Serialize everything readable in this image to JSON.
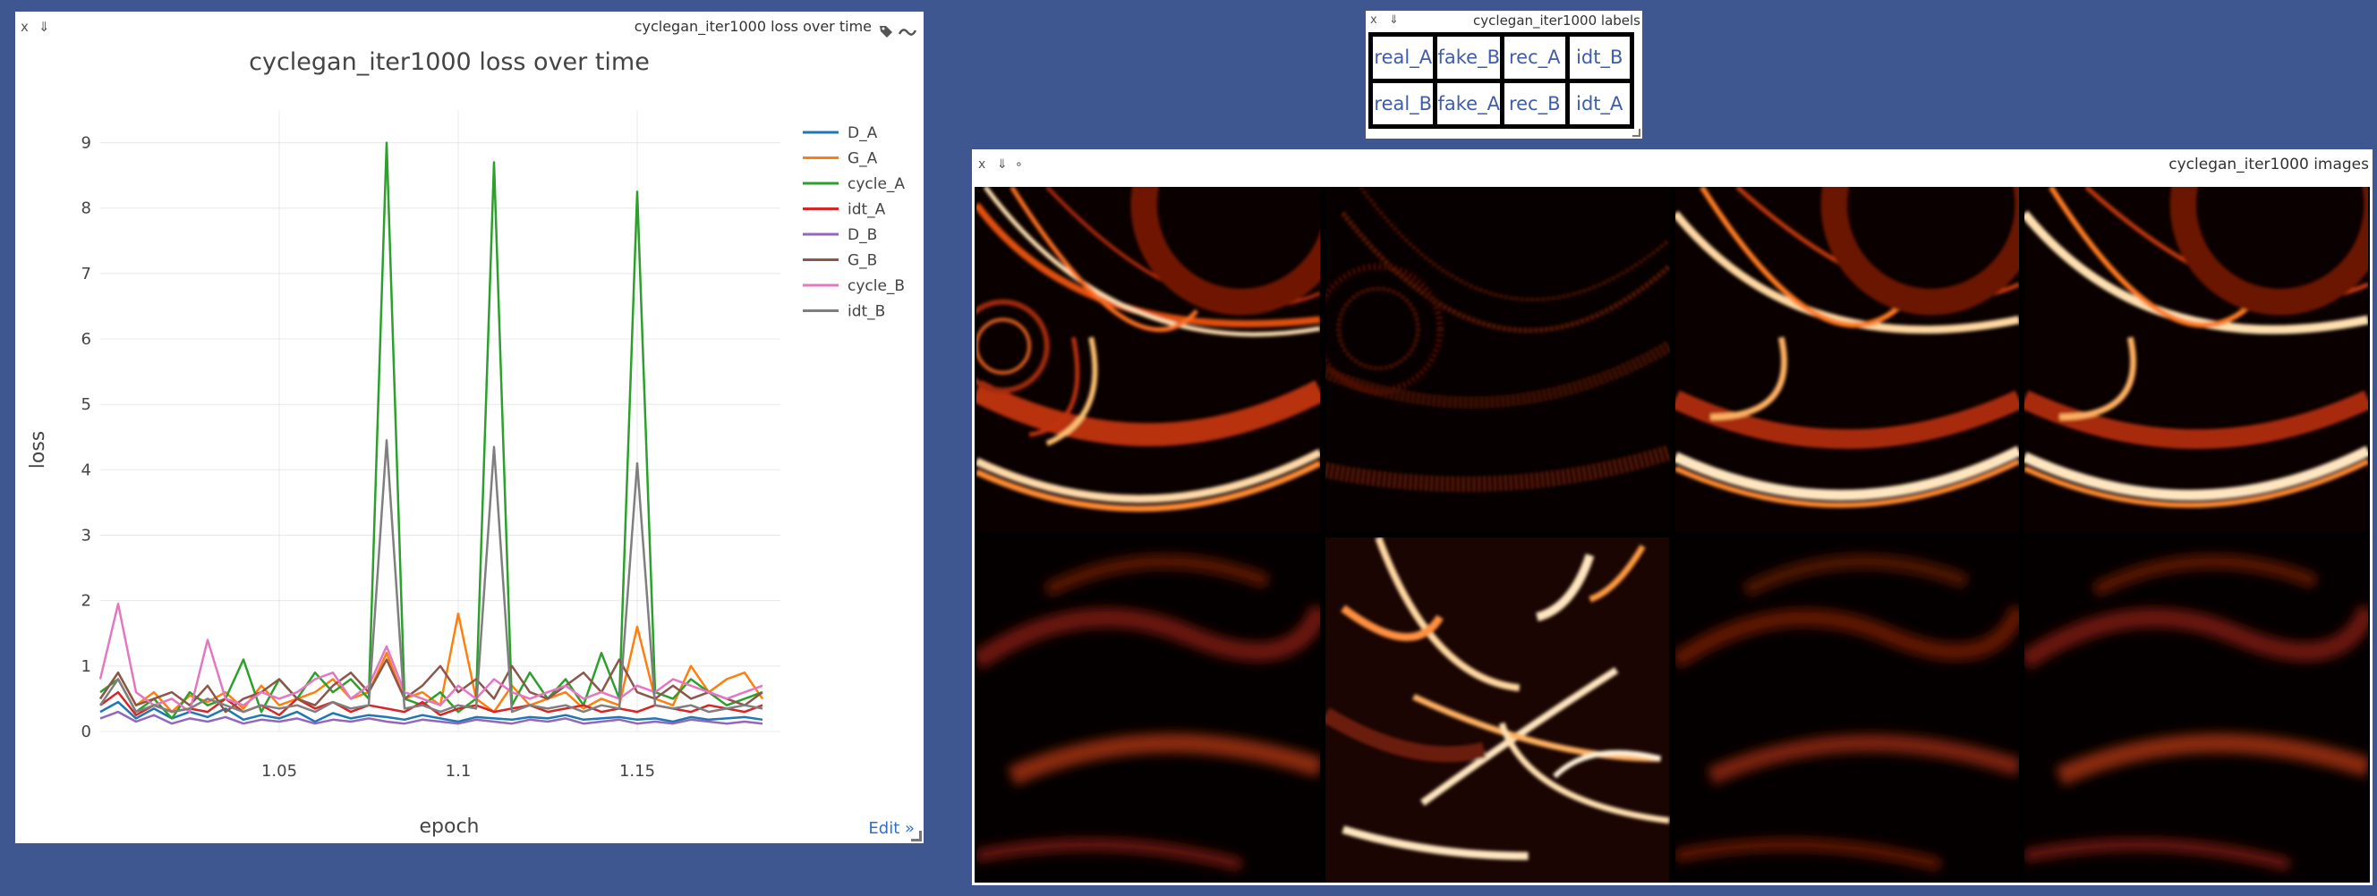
{
  "chart_window": {
    "close": "x",
    "download": "⇓",
    "title": "cyclegan_iter1000 loss over time",
    "tag_icon": "tag-icon",
    "smooth_icon": "wave-icon",
    "edit_link": "Edit »"
  },
  "labels_window": {
    "close": "x",
    "download": "⇓",
    "title": "cyclegan_iter1000 labels",
    "cells": [
      "real_A",
      "fake_B",
      "rec_A",
      "idt_B",
      "real_B",
      "fake_A",
      "rec_B",
      "idt_A"
    ]
  },
  "images_window": {
    "close": "x",
    "download": "⇓",
    "extra": "∘",
    "title": "cyclegan_iter1000 images"
  },
  "colors": {
    "background": "#3f5791",
    "D_A": "#1f77b4",
    "G_A": "#ff7f0e",
    "cycle_A": "#2ca02c",
    "idt_A": "#d62728",
    "D_B": "#9467bd",
    "G_B": "#8c564b",
    "cycle_B": "#e377c2",
    "idt_B": "#7f7f7f"
  },
  "chart_data": {
    "type": "line",
    "title": "cyclegan_iter1000 loss over time",
    "xlabel": "epoch",
    "ylabel": "loss",
    "xlim": [
      1.0,
      1.19
    ],
    "ylim": [
      0,
      9.5
    ],
    "xticks": [
      "1.05",
      "1.1",
      "1.15"
    ],
    "yticks": [
      "0",
      "1",
      "2",
      "3",
      "4",
      "5",
      "6",
      "7",
      "8",
      "9"
    ],
    "grid": true,
    "legend_position": "top-right",
    "x": [
      1.0,
      1.005,
      1.01,
      1.015,
      1.02,
      1.025,
      1.03,
      1.035,
      1.04,
      1.045,
      1.05,
      1.055,
      1.06,
      1.065,
      1.07,
      1.075,
      1.08,
      1.085,
      1.09,
      1.095,
      1.1,
      1.105,
      1.11,
      1.115,
      1.12,
      1.125,
      1.13,
      1.135,
      1.14,
      1.145,
      1.15,
      1.155,
      1.16,
      1.165,
      1.17,
      1.175,
      1.18,
      1.185
    ],
    "series": [
      {
        "name": "D_A",
        "color": "#1f77b4",
        "values": [
          0.3,
          0.45,
          0.2,
          0.35,
          0.2,
          0.3,
          0.22,
          0.35,
          0.18,
          0.25,
          0.2,
          0.3,
          0.15,
          0.28,
          0.2,
          0.25,
          0.22,
          0.18,
          0.25,
          0.2,
          0.15,
          0.22,
          0.2,
          0.18,
          0.22,
          0.2,
          0.25,
          0.18,
          0.2,
          0.22,
          0.18,
          0.2,
          0.15,
          0.22,
          0.18,
          0.2,
          0.22,
          0.18
        ]
      },
      {
        "name": "G_A",
        "color": "#ff7f0e",
        "values": [
          0.5,
          0.9,
          0.4,
          0.6,
          0.3,
          0.55,
          0.45,
          0.6,
          0.35,
          0.7,
          0.4,
          0.5,
          0.6,
          0.8,
          0.5,
          0.6,
          1.2,
          0.5,
          0.6,
          0.4,
          1.8,
          0.5,
          0.3,
          0.7,
          0.4,
          0.5,
          0.6,
          0.35,
          0.5,
          0.4,
          1.6,
          0.5,
          0.4,
          1.0,
          0.6,
          0.8,
          0.9,
          0.5
        ]
      },
      {
        "name": "cycle_A",
        "color": "#2ca02c",
        "values": [
          0.6,
          0.8,
          0.3,
          0.5,
          0.2,
          0.6,
          0.4,
          0.5,
          1.1,
          0.3,
          0.8,
          0.5,
          0.9,
          0.6,
          0.8,
          0.5,
          9.0,
          0.5,
          0.4,
          0.6,
          0.3,
          0.5,
          8.7,
          0.4,
          0.9,
          0.5,
          0.8,
          0.4,
          1.2,
          0.5,
          8.25,
          0.6,
          0.5,
          0.8,
          0.6,
          0.4,
          0.5,
          0.6
        ]
      },
      {
        "name": "idt_A",
        "color": "#d62728",
        "values": [
          0.4,
          0.6,
          0.25,
          0.4,
          0.3,
          0.35,
          0.3,
          0.5,
          0.3,
          0.4,
          0.25,
          0.5,
          0.35,
          0.45,
          0.3,
          0.4,
          0.35,
          0.3,
          0.45,
          0.25,
          0.35,
          0.4,
          0.3,
          0.35,
          0.4,
          0.3,
          0.35,
          0.4,
          0.3,
          0.35,
          0.3,
          0.4,
          0.35,
          0.3,
          0.4,
          0.35,
          0.3,
          0.4
        ]
      },
      {
        "name": "D_B",
        "color": "#9467bd",
        "values": [
          0.2,
          0.3,
          0.15,
          0.25,
          0.12,
          0.2,
          0.15,
          0.22,
          0.12,
          0.18,
          0.15,
          0.2,
          0.12,
          0.18,
          0.15,
          0.2,
          0.15,
          0.12,
          0.18,
          0.15,
          0.12,
          0.18,
          0.15,
          0.12,
          0.18,
          0.15,
          0.2,
          0.12,
          0.15,
          0.18,
          0.12,
          0.15,
          0.12,
          0.18,
          0.15,
          0.12,
          0.15,
          0.12
        ]
      },
      {
        "name": "G_B",
        "color": "#8c564b",
        "values": [
          0.5,
          0.9,
          0.4,
          0.5,
          0.6,
          0.4,
          0.7,
          0.3,
          0.5,
          0.6,
          0.8,
          0.5,
          0.4,
          0.7,
          0.9,
          0.6,
          1.1,
          0.5,
          0.7,
          1.0,
          0.6,
          0.8,
          0.5,
          1.0,
          0.6,
          0.5,
          0.7,
          0.9,
          0.6,
          1.1,
          0.6,
          0.5,
          0.7,
          0.5,
          0.6,
          0.5,
          0.4,
          0.6
        ]
      },
      {
        "name": "cycle_B",
        "color": "#e377c2",
        "values": [
          0.8,
          1.95,
          0.6,
          0.4,
          0.5,
          0.3,
          1.4,
          0.5,
          0.4,
          0.6,
          0.5,
          0.6,
          0.8,
          0.9,
          0.5,
          0.7,
          1.3,
          0.6,
          0.5,
          0.4,
          0.7,
          0.5,
          0.8,
          0.6,
          0.5,
          0.6,
          0.7,
          0.5,
          0.6,
          0.5,
          0.7,
          0.6,
          0.8,
          0.7,
          0.6,
          0.5,
          0.6,
          0.7
        ]
      },
      {
        "name": "idt_B",
        "color": "#7f7f7f",
        "values": [
          0.4,
          0.8,
          0.3,
          0.4,
          0.3,
          0.35,
          0.5,
          0.4,
          0.3,
          0.4,
          0.35,
          0.4,
          0.3,
          0.45,
          0.35,
          0.4,
          4.45,
          0.35,
          0.4,
          0.3,
          0.4,
          0.35,
          4.35,
          0.3,
          0.4,
          0.35,
          0.4,
          0.3,
          0.4,
          0.35,
          4.1,
          0.4,
          0.35,
          0.4,
          0.3,
          0.35,
          0.4,
          0.35
        ]
      }
    ]
  }
}
